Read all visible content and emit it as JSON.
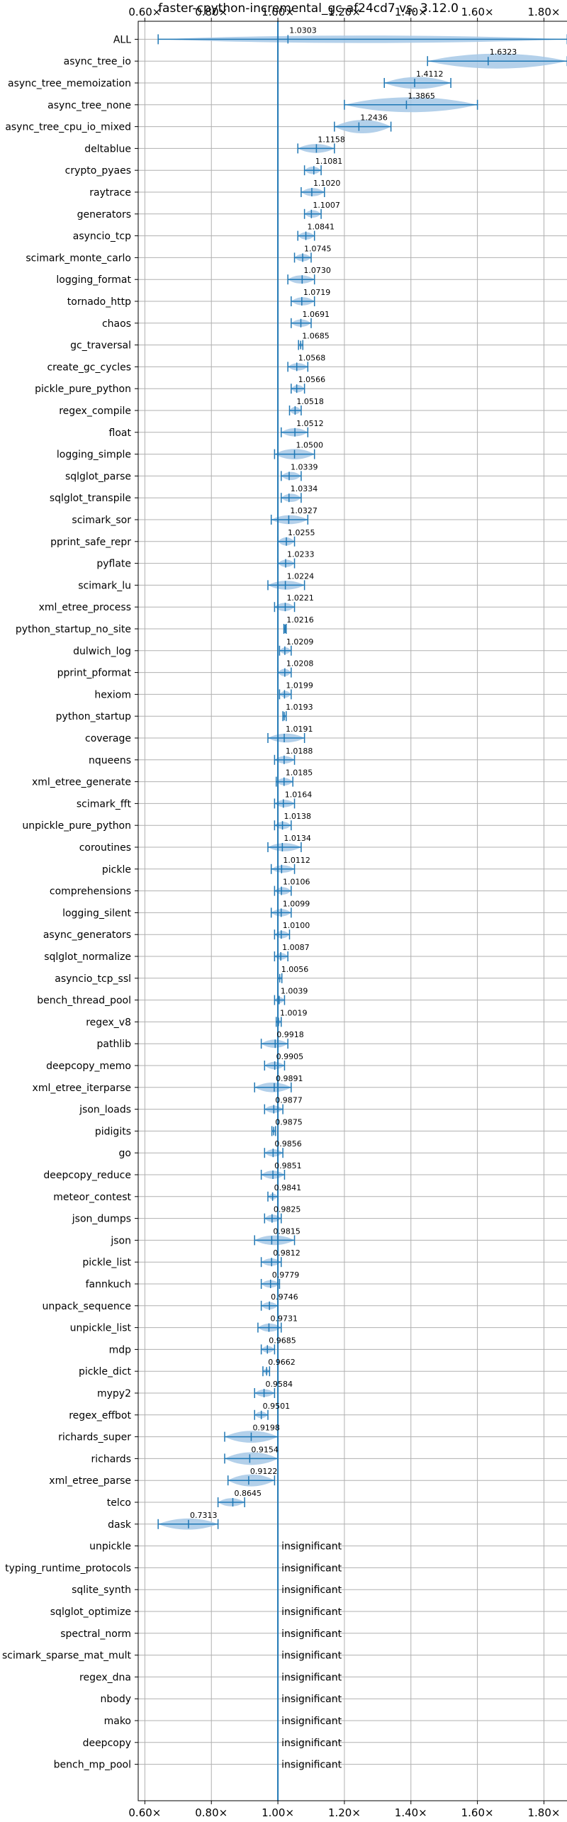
{
  "chart_data": {
    "type": "violin",
    "title": "faster-cpython-incremental_gc-af24cd7 vs. 3.12.0",
    "xlim": [
      0.58,
      1.88
    ],
    "xticks": [
      0.6,
      0.8,
      1.0,
      1.2,
      1.4,
      1.6,
      1.8
    ],
    "xtick_labels": [
      "0.60×",
      "0.80×",
      "1.00×",
      "1.20×",
      "1.40×",
      "1.60×",
      "1.80×"
    ],
    "reference_line": 1.0,
    "grid": true,
    "colors": {
      "mark": "#1f77b4",
      "violin": "#a6c8e6",
      "grid": "#b0b0b0"
    },
    "insignificant_text": "insignificant",
    "benchmarks": [
      {
        "name": "ALL",
        "value": 1.0303,
        "label": "1.0303",
        "lo": 0.64,
        "hi": 1.87,
        "width": 0.5
      },
      {
        "name": "async_tree_io",
        "value": 1.6323,
        "label": "1.6323",
        "lo": 1.45,
        "hi": 1.87,
        "width": 1.0
      },
      {
        "name": "async_tree_memoization",
        "value": 1.4112,
        "label": "1.4112",
        "lo": 1.32,
        "hi": 1.52,
        "width": 0.8
      },
      {
        "name": "async_tree_none",
        "value": 1.3865,
        "label": "1.3865",
        "lo": 1.2,
        "hi": 1.6,
        "width": 1.0
      },
      {
        "name": "async_tree_cpu_io_mixed",
        "value": 1.2436,
        "label": "1.2436",
        "lo": 1.17,
        "hi": 1.34,
        "width": 0.9
      },
      {
        "name": "deltablue",
        "value": 1.1158,
        "label": "1.1158",
        "lo": 1.06,
        "hi": 1.17,
        "width": 0.6
      },
      {
        "name": "crypto_pyaes",
        "value": 1.1081,
        "label": "1.1081",
        "lo": 1.08,
        "hi": 1.13,
        "width": 0.5
      },
      {
        "name": "raytrace",
        "value": 1.102,
        "label": "1.1020",
        "lo": 1.07,
        "hi": 1.14,
        "width": 0.55
      },
      {
        "name": "generators",
        "value": 1.1007,
        "label": "1.1007",
        "lo": 1.08,
        "hi": 1.13,
        "width": 0.5
      },
      {
        "name": "asyncio_tcp",
        "value": 1.0841,
        "label": "1.0841",
        "lo": 1.06,
        "hi": 1.11,
        "width": 0.5
      },
      {
        "name": "scimark_monte_carlo",
        "value": 1.0745,
        "label": "1.0745",
        "lo": 1.05,
        "hi": 1.1,
        "width": 0.5
      },
      {
        "name": "logging_format",
        "value": 1.073,
        "label": "1.0730",
        "lo": 1.03,
        "hi": 1.11,
        "width": 0.55
      },
      {
        "name": "tornado_http",
        "value": 1.0719,
        "label": "1.0719",
        "lo": 1.04,
        "hi": 1.11,
        "width": 0.55
      },
      {
        "name": "chaos",
        "value": 1.0691,
        "label": "1.0691",
        "lo": 1.04,
        "hi": 1.1,
        "width": 0.5
      },
      {
        "name": "gc_traversal",
        "value": 1.0685,
        "label": "1.0685",
        "lo": 1.062,
        "hi": 1.075,
        "width": 0.3
      },
      {
        "name": "create_gc_cycles",
        "value": 1.0568,
        "label": "1.0568",
        "lo": 1.03,
        "hi": 1.09,
        "width": 0.5
      },
      {
        "name": "pickle_pure_python",
        "value": 1.0566,
        "label": "1.0566",
        "lo": 1.04,
        "hi": 1.08,
        "width": 0.5
      },
      {
        "name": "regex_compile",
        "value": 1.0518,
        "label": "1.0518",
        "lo": 1.035,
        "hi": 1.07,
        "width": 0.5
      },
      {
        "name": "float",
        "value": 1.0512,
        "label": "1.0512",
        "lo": 1.01,
        "hi": 1.09,
        "width": 0.55
      },
      {
        "name": "logging_simple",
        "value": 1.05,
        "label": "1.0500",
        "lo": 0.99,
        "hi": 1.11,
        "width": 0.7
      },
      {
        "name": "sqlglot_parse",
        "value": 1.0339,
        "label": "1.0339",
        "lo": 1.01,
        "hi": 1.07,
        "width": 0.55
      },
      {
        "name": "sqlglot_transpile",
        "value": 1.0334,
        "label": "1.0334",
        "lo": 1.01,
        "hi": 1.07,
        "width": 0.55
      },
      {
        "name": "scimark_sor",
        "value": 1.0327,
        "label": "1.0327",
        "lo": 0.98,
        "hi": 1.09,
        "width": 0.6
      },
      {
        "name": "pprint_safe_repr",
        "value": 1.0255,
        "label": "1.0255",
        "lo": 1.0,
        "hi": 1.05,
        "width": 0.55
      },
      {
        "name": "pyflate",
        "value": 1.0233,
        "label": "1.0233",
        "lo": 1.0,
        "hi": 1.05,
        "width": 0.5
      },
      {
        "name": "scimark_lu",
        "value": 1.0224,
        "label": "1.0224",
        "lo": 0.97,
        "hi": 1.08,
        "width": 0.6
      },
      {
        "name": "xml_etree_process",
        "value": 1.0221,
        "label": "1.0221",
        "lo": 0.99,
        "hi": 1.05,
        "width": 0.55
      },
      {
        "name": "python_startup_no_site",
        "value": 1.0216,
        "label": "1.0216",
        "lo": 1.018,
        "hi": 1.025,
        "width": 0.25
      },
      {
        "name": "dulwich_log",
        "value": 1.0209,
        "label": "1.0209",
        "lo": 1.005,
        "hi": 1.04,
        "width": 0.45
      },
      {
        "name": "pprint_pformat",
        "value": 1.0208,
        "label": "1.0208",
        "lo": 1.0,
        "hi": 1.04,
        "width": 0.5
      },
      {
        "name": "hexiom",
        "value": 1.0199,
        "label": "1.0199",
        "lo": 1.005,
        "hi": 1.04,
        "width": 0.45
      },
      {
        "name": "python_startup",
        "value": 1.0193,
        "label": "1.0193",
        "lo": 1.015,
        "hi": 1.025,
        "width": 0.25
      },
      {
        "name": "coverage",
        "value": 1.0191,
        "label": "1.0191",
        "lo": 0.97,
        "hi": 1.08,
        "width": 0.6
      },
      {
        "name": "nqueens",
        "value": 1.0188,
        "label": "1.0188",
        "lo": 0.99,
        "hi": 1.05,
        "width": 0.5
      },
      {
        "name": "xml_etree_generate",
        "value": 1.0185,
        "label": "1.0185",
        "lo": 0.995,
        "hi": 1.045,
        "width": 0.5
      },
      {
        "name": "scimark_fft",
        "value": 1.0164,
        "label": "1.0164",
        "lo": 0.99,
        "hi": 1.05,
        "width": 0.5
      },
      {
        "name": "unpickle_pure_python",
        "value": 1.0138,
        "label": "1.0138",
        "lo": 0.99,
        "hi": 1.04,
        "width": 0.5
      },
      {
        "name": "coroutines",
        "value": 1.0134,
        "label": "1.0134",
        "lo": 0.97,
        "hi": 1.07,
        "width": 0.55
      },
      {
        "name": "pickle",
        "value": 1.0112,
        "label": "1.0112",
        "lo": 0.98,
        "hi": 1.05,
        "width": 0.5
      },
      {
        "name": "comprehensions",
        "value": 1.0106,
        "label": "1.0106",
        "lo": 0.99,
        "hi": 1.04,
        "width": 0.5
      },
      {
        "name": "logging_silent",
        "value": 1.0099,
        "label": "1.0099",
        "lo": 0.98,
        "hi": 1.04,
        "width": 0.5
      },
      {
        "name": "async_generators",
        "value": 1.01,
        "label": "1.0100",
        "lo": 0.99,
        "hi": 1.035,
        "width": 0.5
      },
      {
        "name": "sqlglot_normalize",
        "value": 1.0087,
        "label": "1.0087",
        "lo": 0.99,
        "hi": 1.03,
        "width": 0.45
      },
      {
        "name": "asyncio_tcp_ssl",
        "value": 1.0056,
        "label": "1.0056",
        "lo": 1.0,
        "hi": 1.012,
        "width": 0.25
      },
      {
        "name": "bench_thread_pool",
        "value": 1.0039,
        "label": "1.0039",
        "lo": 0.99,
        "hi": 1.02,
        "width": 0.4
      },
      {
        "name": "regex_v8",
        "value": 1.0019,
        "label": "1.0019",
        "lo": 0.995,
        "hi": 1.01,
        "width": 0.3
      },
      {
        "name": "pathlib",
        "value": 0.9918,
        "label": "0.9918",
        "lo": 0.95,
        "hi": 1.03,
        "width": 0.55
      },
      {
        "name": "deepcopy_memo",
        "value": 0.9905,
        "label": "0.9905",
        "lo": 0.96,
        "hi": 1.02,
        "width": 0.5
      },
      {
        "name": "xml_etree_iterparse",
        "value": 0.9891,
        "label": "0.9891",
        "lo": 0.93,
        "hi": 1.04,
        "width": 0.65
      },
      {
        "name": "json_loads",
        "value": 0.9877,
        "label": "0.9877",
        "lo": 0.96,
        "hi": 1.015,
        "width": 0.5
      },
      {
        "name": "pidigits",
        "value": 0.9875,
        "label": "0.9875",
        "lo": 0.982,
        "hi": 0.993,
        "width": 0.25
      },
      {
        "name": "go",
        "value": 0.9856,
        "label": "0.9856",
        "lo": 0.96,
        "hi": 1.015,
        "width": 0.5
      },
      {
        "name": "deepcopy_reduce",
        "value": 0.9851,
        "label": "0.9851",
        "lo": 0.95,
        "hi": 1.02,
        "width": 0.55
      },
      {
        "name": "meteor_contest",
        "value": 0.9841,
        "label": "0.9841",
        "lo": 0.97,
        "hi": 1.0,
        "width": 0.4
      },
      {
        "name": "json_dumps",
        "value": 0.9825,
        "label": "0.9825",
        "lo": 0.96,
        "hi": 1.01,
        "width": 0.5
      },
      {
        "name": "json",
        "value": 0.9815,
        "label": "0.9815",
        "lo": 0.93,
        "hi": 1.05,
        "width": 0.65
      },
      {
        "name": "pickle_list",
        "value": 0.9812,
        "label": "0.9812",
        "lo": 0.95,
        "hi": 1.01,
        "width": 0.5
      },
      {
        "name": "fannkuch",
        "value": 0.9779,
        "label": "0.9779",
        "lo": 0.95,
        "hi": 1.005,
        "width": 0.5
      },
      {
        "name": "unpack_sequence",
        "value": 0.9746,
        "label": "0.9746",
        "lo": 0.95,
        "hi": 1.0,
        "width": 0.5
      },
      {
        "name": "unpickle_list",
        "value": 0.9731,
        "label": "0.9731",
        "lo": 0.94,
        "hi": 1.01,
        "width": 0.55
      },
      {
        "name": "mdp",
        "value": 0.9685,
        "label": "0.9685",
        "lo": 0.95,
        "hi": 0.99,
        "width": 0.45
      },
      {
        "name": "pickle_dict",
        "value": 0.9662,
        "label": "0.9662",
        "lo": 0.955,
        "hi": 0.975,
        "width": 0.35
      },
      {
        "name": "mypy2",
        "value": 0.9584,
        "label": "0.9584",
        "lo": 0.93,
        "hi": 0.99,
        "width": 0.5
      },
      {
        "name": "regex_effbot",
        "value": 0.9501,
        "label": "0.9501",
        "lo": 0.93,
        "hi": 0.97,
        "width": 0.45
      },
      {
        "name": "richards_super",
        "value": 0.9198,
        "label": "0.9198",
        "lo": 0.84,
        "hi": 1.0,
        "width": 0.8
      },
      {
        "name": "richards",
        "value": 0.9154,
        "label": "0.9154",
        "lo": 0.84,
        "hi": 1.0,
        "width": 0.85
      },
      {
        "name": "xml_etree_parse",
        "value": 0.9122,
        "label": "0.9122",
        "lo": 0.85,
        "hi": 0.99,
        "width": 0.8
      },
      {
        "name": "telco",
        "value": 0.8645,
        "label": "0.8645",
        "lo": 0.82,
        "hi": 0.9,
        "width": 0.55
      },
      {
        "name": "dask",
        "value": 0.7313,
        "label": "0.7313",
        "lo": 0.64,
        "hi": 0.82,
        "width": 0.75
      },
      {
        "name": "unpickle",
        "value": null,
        "label": "insignificant"
      },
      {
        "name": "typing_runtime_protocols",
        "value": null,
        "label": "insignificant"
      },
      {
        "name": "sqlite_synth",
        "value": null,
        "label": "insignificant"
      },
      {
        "name": "sqlglot_optimize",
        "value": null,
        "label": "insignificant"
      },
      {
        "name": "spectral_norm",
        "value": null,
        "label": "insignificant"
      },
      {
        "name": "scimark_sparse_mat_mult",
        "value": null,
        "label": "insignificant"
      },
      {
        "name": "regex_dna",
        "value": null,
        "label": "insignificant"
      },
      {
        "name": "nbody",
        "value": null,
        "label": "insignificant"
      },
      {
        "name": "mako",
        "value": null,
        "label": "insignificant"
      },
      {
        "name": "deepcopy",
        "value": null,
        "label": "insignificant"
      },
      {
        "name": "bench_mp_pool",
        "value": null,
        "label": "insignificant"
      }
    ]
  }
}
